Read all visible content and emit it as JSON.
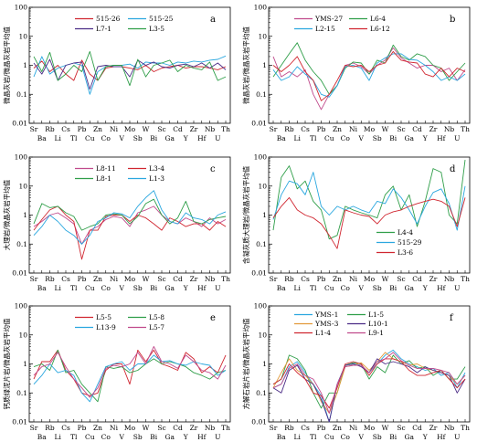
{
  "chart_data": [
    {
      "type": "line",
      "label": "a",
      "ylabel": "微晶灰岩/微晶灰岩平均值",
      "ylim": [
        0.01,
        100
      ],
      "log_scale": true,
      "grid": false,
      "legend_position": "top",
      "categories": [
        "Sr",
        "Ba",
        "Rb",
        "Li",
        "Cs",
        "Tl",
        "Pb",
        "Cu",
        "Zn",
        "Co",
        "Ni",
        "V",
        "Mo",
        "Sb",
        "W",
        "Bi",
        "Sc",
        "Ga",
        "Cd",
        "Y",
        "Zr",
        "Hf",
        "Nb",
        "U",
        "Th"
      ],
      "series": [
        {
          "name": "515-26",
          "color": "#d02630",
          "values": [
            0.8,
            1.4,
            0.6,
            1.0,
            0.5,
            0.3,
            1.5,
            0.5,
            0.3,
            0.8,
            0.9,
            0.9,
            0.8,
            0.7,
            1.0,
            0.6,
            0.8,
            0.9,
            1.0,
            0.8,
            0.9,
            0.9,
            0.8,
            0.7,
            0.9
          ]
        },
        {
          "name": "515-25",
          "color": "#2aa7df",
          "values": [
            0.4,
            2.0,
            0.5,
            0.8,
            1.0,
            1.2,
            1.0,
            0.1,
            0.6,
            0.9,
            1.0,
            1.0,
            1.1,
            0.8,
            1.3,
            1.2,
            1.2,
            1.0,
            1.3,
            1.2,
            1.4,
            1.3,
            1.5,
            1.6,
            2.1
          ]
        },
        {
          "name": "L7-1",
          "color": "#4b2c86",
          "values": [
            1.2,
            0.5,
            1.6,
            0.3,
            1.0,
            1.2,
            1.3,
            0.15,
            0.9,
            1.0,
            0.9,
            0.9,
            0.4,
            1.5,
            1.0,
            1.3,
            0.9,
            0.8,
            1.0,
            1.1,
            0.9,
            1.2,
            0.8,
            1.2,
            0.7
          ]
        },
        {
          "name": "L3-5",
          "color": "#2f9e49",
          "values": [
            2.0,
            0.6,
            2.8,
            0.3,
            0.5,
            1.0,
            0.6,
            3.0,
            0.3,
            0.9,
            1.0,
            1.0,
            0.2,
            1.6,
            0.4,
            1.0,
            1.2,
            1.5,
            0.6,
            1.0,
            0.8,
            0.7,
            1.3,
            0.3,
            0.4
          ]
        }
      ]
    },
    {
      "type": "line",
      "label": "b",
      "ylabel": "微晶灰岩/微晶灰岩平均值",
      "ylim": [
        0.01,
        100
      ],
      "log_scale": true,
      "grid": false,
      "legend_position": "top",
      "categories": [
        "Sr",
        "Ba",
        "Rb",
        "Li",
        "Cs",
        "Tl",
        "Pb",
        "Cu",
        "Zn",
        "Co",
        "Ni",
        "V",
        "Mo",
        "Sb",
        "W",
        "Bi",
        "Sc",
        "Ga",
        "Cd",
        "Y",
        "Zr",
        "Hf",
        "Nb",
        "U",
        "Th"
      ],
      "series": [
        {
          "name": "YMS-27",
          "color": "#c04a8c",
          "values": [
            2.0,
            0.4,
            0.6,
            0.4,
            0.7,
            0.1,
            0.03,
            0.1,
            0.2,
            1.0,
            1.2,
            0.9,
            0.5,
            1.0,
            1.5,
            4.0,
            1.8,
            1.2,
            0.8,
            1.0,
            1.0,
            0.6,
            0.8,
            0.3,
            0.7
          ]
        },
        {
          "name": "L6-4",
          "color": "#2f9e49",
          "values": [
            0.4,
            1.0,
            2.5,
            6.0,
            1.5,
            0.6,
            0.3,
            0.1,
            0.2,
            0.8,
            1.3,
            1.2,
            0.5,
            1.5,
            1.2,
            5.0,
            2.0,
            1.5,
            2.5,
            2.0,
            1.0,
            0.8,
            0.3,
            0.6,
            1.2
          ]
        },
        {
          "name": "L2-15",
          "color": "#2aa7df",
          "values": [
            0.7,
            0.3,
            0.4,
            0.9,
            0.5,
            0.3,
            0.1,
            0.08,
            0.2,
            0.9,
            1.0,
            0.8,
            0.3,
            1.2,
            1.8,
            2.5,
            2.5,
            1.6,
            1.5,
            1.0,
            0.6,
            0.3,
            0.4,
            0.3,
            0.5
          ]
        },
        {
          "name": "L6-12",
          "color": "#d02630",
          "values": [
            1.0,
            0.6,
            1.0,
            2.0,
            0.6,
            0.3,
            0.06,
            0.1,
            0.3,
            1.0,
            0.9,
            1.0,
            0.6,
            1.0,
            1.2,
            3.0,
            1.5,
            1.3,
            1.2,
            0.5,
            0.4,
            0.8,
            0.4,
            0.8,
            0.6
          ]
        }
      ]
    },
    {
      "type": "line",
      "label": "c",
      "ylabel": "大理岩/微晶灰岩平均值",
      "ylim": [
        0.01,
        100
      ],
      "log_scale": true,
      "grid": false,
      "legend_position": "top",
      "categories": [
        "Sr",
        "Ba",
        "Rb",
        "Li",
        "Cs",
        "Tl",
        "Pb",
        "Cu",
        "Zn",
        "Co",
        "Ni",
        "V",
        "Mo",
        "Sb",
        "W",
        "Bi",
        "Sc",
        "Ga",
        "Cd",
        "Y",
        "Zr",
        "Hf",
        "Nb",
        "U",
        "Th"
      ],
      "series": [
        {
          "name": "L8-11",
          "color": "#c04a8c",
          "values": [
            0.4,
            0.6,
            1.0,
            1.2,
            0.8,
            0.5,
            0.1,
            0.3,
            0.4,
            0.7,
            0.9,
            0.8,
            0.4,
            1.2,
            1.5,
            2.0,
            1.0,
            0.6,
            0.5,
            0.8,
            0.6,
            0.4,
            0.8,
            0.5,
            0.7
          ]
        },
        {
          "name": "L3-4",
          "color": "#d02630",
          "values": [
            0.3,
            0.7,
            1.5,
            2.0,
            1.0,
            0.6,
            0.03,
            0.3,
            0.3,
            0.9,
            1.0,
            1.0,
            0.6,
            1.0,
            0.8,
            0.5,
            0.3,
            0.8,
            0.6,
            0.4,
            0.5,
            0.5,
            0.3,
            0.6,
            0.4
          ]
        },
        {
          "name": "L8-1",
          "color": "#2f9e49",
          "values": [
            0.5,
            2.5,
            1.8,
            2.0,
            1.2,
            0.9,
            0.3,
            0.4,
            0.5,
            1.0,
            1.1,
            1.0,
            0.5,
            0.9,
            2.5,
            3.5,
            1.0,
            0.5,
            0.8,
            3.0,
            0.6,
            0.5,
            0.7,
            0.8,
            0.9
          ]
        },
        {
          "name": "L1-3",
          "color": "#2aa7df",
          "values": [
            0.2,
            0.4,
            1.0,
            0.6,
            0.3,
            0.2,
            0.1,
            0.2,
            0.6,
            0.8,
            1.2,
            1.1,
            0.8,
            2.0,
            4.0,
            7.0,
            1.5,
            0.6,
            0.5,
            1.2,
            0.8,
            0.7,
            0.5,
            1.0,
            1.3
          ]
        }
      ]
    },
    {
      "type": "line",
      "label": "d",
      "ylabel": "含凝灰质大理岩/微晶灰岩平均值",
      "ylim": [
        0.01,
        100
      ],
      "log_scale": true,
      "grid": false,
      "legend_position": "bottom-left",
      "categories": [
        "Sr",
        "Ba",
        "Rb",
        "Li",
        "Cs",
        "Tl",
        "Pb",
        "Cu",
        "Zn",
        "Co",
        "Ni",
        "V",
        "Mo",
        "Sb",
        "W",
        "Bi",
        "Sc",
        "Ga",
        "Cd",
        "Y",
        "Zr",
        "Hf",
        "Nb",
        "U",
        "Th"
      ],
      "series": [
        {
          "name": "L4-4",
          "color": "#2f9e49",
          "values": [
            0.3,
            20,
            50,
            8,
            15,
            3,
            1.5,
            0.15,
            0.2,
            2.0,
            1.5,
            1.2,
            1.0,
            0.8,
            5.0,
            10,
            1.5,
            5.0,
            0.4,
            3.0,
            40,
            30,
            1.0,
            0.5,
            80
          ]
        },
        {
          "name": "515-29",
          "color": "#2aa7df",
          "values": [
            0.7,
            5,
            15,
            12,
            5,
            30,
            2,
            1.0,
            2.0,
            1.5,
            2.0,
            1.5,
            1.2,
            3.0,
            2.5,
            8.0,
            4.0,
            1.5,
            0.5,
            2.0,
            6.0,
            8.0,
            2.5,
            0.3,
            10
          ]
        },
        {
          "name": "L3-6",
          "color": "#d02630",
          "values": [
            0.8,
            2,
            4,
            1.5,
            1.0,
            0.8,
            0.5,
            0.2,
            0.07,
            1.5,
            1.2,
            1.0,
            0.9,
            0.5,
            1.0,
            1.3,
            1.5,
            2.0,
            2.5,
            3.0,
            3.5,
            3.0,
            2.0,
            0.4,
            4.0
          ]
        }
      ]
    },
    {
      "type": "line",
      "label": "e",
      "ylabel": "钙质绿泥片岩/微晶灰岩平均值",
      "ylim": [
        0.01,
        100
      ],
      "log_scale": true,
      "grid": false,
      "legend_position": "top",
      "categories": [
        "Sr",
        "Ba",
        "Rb",
        "Li",
        "Cs",
        "Tl",
        "Pb",
        "Cu",
        "Zn",
        "Co",
        "Ni",
        "V",
        "Mo",
        "Sb",
        "W",
        "Bi",
        "Sc",
        "Ga",
        "Cd",
        "Y",
        "Zr",
        "Hf",
        "Nb",
        "U",
        "Th"
      ],
      "series": [
        {
          "name": "L5-5",
          "color": "#d02630",
          "values": [
            0.3,
            1.2,
            1.2,
            3.0,
            0.6,
            0.3,
            0.1,
            0.08,
            0.1,
            0.6,
            1.0,
            1.0,
            0.2,
            3.0,
            1.2,
            3.0,
            1.0,
            0.8,
            0.6,
            2.5,
            1.5,
            0.5,
            0.8,
            0.5,
            2.0
          ]
        },
        {
          "name": "L5-8",
          "color": "#2f9e49",
          "values": [
            0.8,
            1.0,
            0.6,
            3.0,
            0.5,
            0.6,
            0.2,
            0.1,
            0.05,
            0.8,
            0.7,
            0.8,
            0.5,
            0.6,
            1.0,
            1.5,
            1.0,
            1.2,
            1.0,
            0.8,
            0.5,
            0.4,
            0.3,
            0.5,
            0.6
          ]
        },
        {
          "name": "L13-9",
          "color": "#2aa7df",
          "values": [
            0.2,
            0.4,
            1.0,
            0.5,
            0.6,
            0.4,
            0.1,
            0.05,
            0.2,
            0.8,
            1.0,
            1.2,
            0.6,
            1.0,
            1.0,
            2.0,
            1.2,
            1.3,
            1.0,
            0.9,
            1.2,
            1.0,
            0.9,
            0.4,
            0.6
          ]
        },
        {
          "name": "L5-7",
          "color": "#c04a8c",
          "values": [
            0.4,
            0.8,
            1.0,
            2.5,
            0.8,
            0.3,
            0.15,
            0.07,
            0.15,
            0.7,
            0.9,
            0.8,
            1.0,
            2.5,
            1.0,
            4.0,
            1.2,
            1.0,
            0.7,
            2.0,
            1.2,
            0.6,
            0.5,
            0.3,
            0.9
          ]
        }
      ]
    },
    {
      "type": "line",
      "label": "f",
      "ylabel": "方解石岩片岩/微晶灰岩平均值",
      "ylim": [
        0.01,
        100
      ],
      "log_scale": true,
      "grid": false,
      "legend_position": "top",
      "categories": [
        "Sr",
        "Ba",
        "Rb",
        "Li",
        "Cs",
        "Tl",
        "Pb",
        "Cu",
        "Zn",
        "Co",
        "Ni",
        "V",
        "Mo",
        "Sb",
        "W",
        "Bi",
        "Sc",
        "Ga",
        "Cd",
        "Y",
        "Zr",
        "Hf",
        "Nb",
        "U",
        "Th"
      ],
      "series": [
        {
          "name": "YMS-1",
          "color": "#2aa7df",
          "values": [
            0.15,
            0.2,
            0.8,
            1.2,
            0.5,
            0.2,
            0.08,
            0.007,
            0.2,
            0.9,
            1.0,
            0.9,
            0.5,
            1.0,
            2.0,
            3.0,
            1.5,
            1.0,
            0.8,
            0.6,
            0.7,
            0.4,
            0.5,
            0.15,
            0.5
          ]
        },
        {
          "name": "L1-5",
          "color": "#2f9e49",
          "values": [
            0.2,
            0.3,
            2.0,
            1.5,
            0.6,
            0.1,
            0.03,
            0.1,
            0.1,
            0.9,
            1.1,
            1.0,
            0.3,
            0.8,
            0.5,
            2.0,
            1.0,
            1.3,
            0.7,
            0.8,
            0.4,
            0.6,
            0.3,
            0.3,
            0.8
          ]
        },
        {
          "name": "YMS-3",
          "color": "#e29a3a",
          "values": [
            0.15,
            0.5,
            1.5,
            0.6,
            0.4,
            0.2,
            0.05,
            0.02,
            0.1,
            0.8,
            0.9,
            1.1,
            0.6,
            1.2,
            2.5,
            1.5,
            1.2,
            0.9,
            1.0,
            0.7,
            0.6,
            0.5,
            0.4,
            0.2,
            0.4
          ]
        },
        {
          "name": "L10-1",
          "color": "#4b2c86",
          "values": [
            0.15,
            0.1,
            0.6,
            0.9,
            0.3,
            0.2,
            0.06,
            0.01,
            0.2,
            0.9,
            1.0,
            0.8,
            0.5,
            1.5,
            1.0,
            1.2,
            1.0,
            0.8,
            0.5,
            0.8,
            0.6,
            0.5,
            0.4,
            0.1,
            0.3
          ]
        },
        {
          "name": "L1-4",
          "color": "#d02630",
          "values": [
            0.2,
            0.3,
            1.0,
            0.5,
            0.3,
            0.1,
            0.08,
            0.03,
            0.15,
            1.0,
            1.2,
            1.0,
            0.4,
            1.0,
            1.5,
            1.5,
            1.2,
            0.6,
            0.4,
            0.4,
            0.5,
            0.6,
            0.3,
            0.15,
            0.3
          ]
        },
        {
          "name": "L9-1",
          "color": "#c04a8c",
          "values": [
            0.15,
            0.2,
            0.7,
            1.0,
            0.4,
            0.3,
            0.1,
            0.02,
            0.2,
            0.8,
            0.9,
            0.9,
            0.5,
            1.2,
            1.5,
            2.5,
            1.3,
            0.9,
            0.7,
            0.7,
            0.7,
            0.6,
            0.5,
            0.2,
            0.4
          ]
        }
      ]
    }
  ]
}
